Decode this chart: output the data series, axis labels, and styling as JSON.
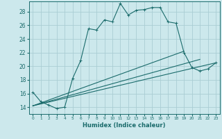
{
  "xlabel": "Humidex (Indice chaleur)",
  "bg_color": "#cce8ec",
  "grid_color": "#aacdd4",
  "line_color": "#1a6b6b",
  "xlim": [
    -0.5,
    23.5
  ],
  "ylim": [
    13.0,
    29.5
  ],
  "xticks": [
    0,
    1,
    2,
    3,
    4,
    5,
    6,
    7,
    8,
    9,
    10,
    11,
    12,
    13,
    14,
    15,
    16,
    17,
    18,
    19,
    20,
    21,
    22,
    23
  ],
  "yticks": [
    14,
    16,
    18,
    20,
    22,
    24,
    26,
    28
  ],
  "curve1_x": [
    0,
    1,
    2,
    3,
    4,
    5,
    6,
    7,
    8,
    9,
    10,
    11,
    12,
    13,
    14,
    15,
    16,
    17,
    18,
    19,
    20,
    21,
    22,
    23
  ],
  "curve1_y": [
    16.2,
    14.8,
    14.3,
    13.8,
    14.0,
    18.2,
    20.8,
    25.5,
    25.3,
    26.8,
    26.5,
    29.2,
    27.5,
    28.2,
    28.3,
    28.6,
    28.6,
    26.5,
    26.3,
    22.0,
    19.8,
    19.3,
    19.6,
    20.5
  ],
  "curve2_x": [
    0,
    19
  ],
  "curve2_y": [
    14.2,
    22.2
  ],
  "curve3_x": [
    0,
    21
  ],
  "curve3_y": [
    14.2,
    21.0
  ],
  "curve4_x": [
    0,
    23
  ],
  "curve4_y": [
    14.2,
    20.5
  ]
}
